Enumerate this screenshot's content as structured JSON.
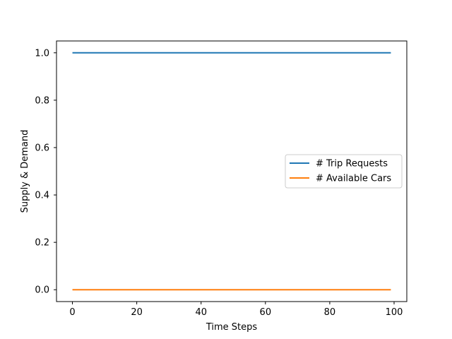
{
  "chart_data": {
    "type": "line",
    "title": "",
    "xlabel": "Time Steps",
    "ylabel": "Supply & Demand",
    "xlim": [
      -4.95,
      103.95
    ],
    "ylim": [
      -0.05,
      1.05
    ],
    "xticks": [
      0,
      20,
      40,
      60,
      80,
      100
    ],
    "xtick_labels": [
      "0",
      "20",
      "40",
      "60",
      "80",
      "100"
    ],
    "yticks": [
      0.0,
      0.2,
      0.4,
      0.6,
      0.8,
      1.0
    ],
    "ytick_labels": [
      "0.0",
      "0.2",
      "0.4",
      "0.6",
      "0.8",
      "1.0"
    ],
    "grid": false,
    "legend_position": "center-right",
    "series": [
      {
        "name": "# Trip Requests",
        "color": "#1f77b4",
        "x": [
          0,
          99
        ],
        "y": [
          1.0,
          1.0
        ]
      },
      {
        "name": "# Available Cars",
        "color": "#ff7f0e",
        "x": [
          0,
          99
        ],
        "y": [
          0.0,
          0.0
        ]
      }
    ]
  }
}
